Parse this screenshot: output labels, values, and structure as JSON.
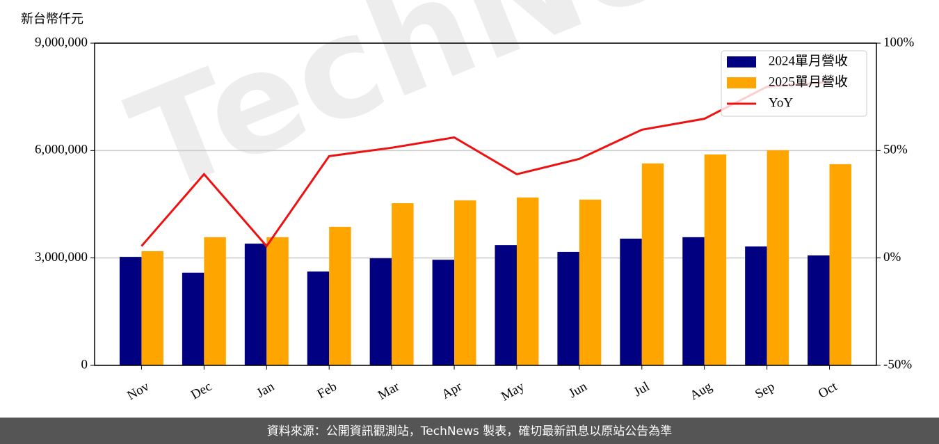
{
  "chart_data": {
    "type": "bar",
    "y_label": "新台幣仟元",
    "watermark": "TechNews",
    "footer": "資料來源：公開資訊觀測站，TechNews 製表，確切最新訊息以原站公告為準",
    "categories": [
      "Nov",
      "Dec",
      "Jan",
      "Feb",
      "Mar",
      "Apr",
      "May",
      "Jun",
      "Jul",
      "Aug",
      "Sep",
      "Oct"
    ],
    "series": [
      {
        "name": "2024單月營收",
        "color": "#000080",
        "values": [
          3030000,
          2590000,
          3400000,
          2620000,
          2990000,
          2950000,
          3360000,
          3170000,
          3540000,
          3580000,
          3320000,
          3070000
        ]
      },
      {
        "name": "2025單月營收",
        "color": "#ffa500",
        "values": [
          3190000,
          3580000,
          3580000,
          3870000,
          4530000,
          4610000,
          4690000,
          4630000,
          5640000,
          5890000,
          6010000,
          5620000
        ]
      },
      {
        "name": "YoY",
        "type": "line",
        "axis": "y2",
        "color": "#ee1111",
        "values": [
          5.5,
          39,
          5.5,
          47.4,
          51.3,
          56.1,
          39,
          46.1,
          59.7,
          64.8,
          79.7,
          81.9
        ]
      }
    ],
    "ylim": [
      0,
      9000000
    ],
    "yticks": [
      0,
      {
        "value": 3000000,
        "label": "3,000,000"
      },
      {
        "value": 6000000,
        "label": "6,000,000"
      },
      {
        "value": 9000000,
        "label": "9,000,000"
      }
    ],
    "y2lim": [
      -50,
      100
    ],
    "y2ticks": [
      {
        "value": -50,
        "label": "-50%"
      },
      {
        "value": 0,
        "label": "0%"
      },
      {
        "value": 50,
        "label": "50%"
      },
      {
        "value": 100,
        "label": "100%"
      }
    ],
    "grid": true,
    "legend": "upper right"
  }
}
